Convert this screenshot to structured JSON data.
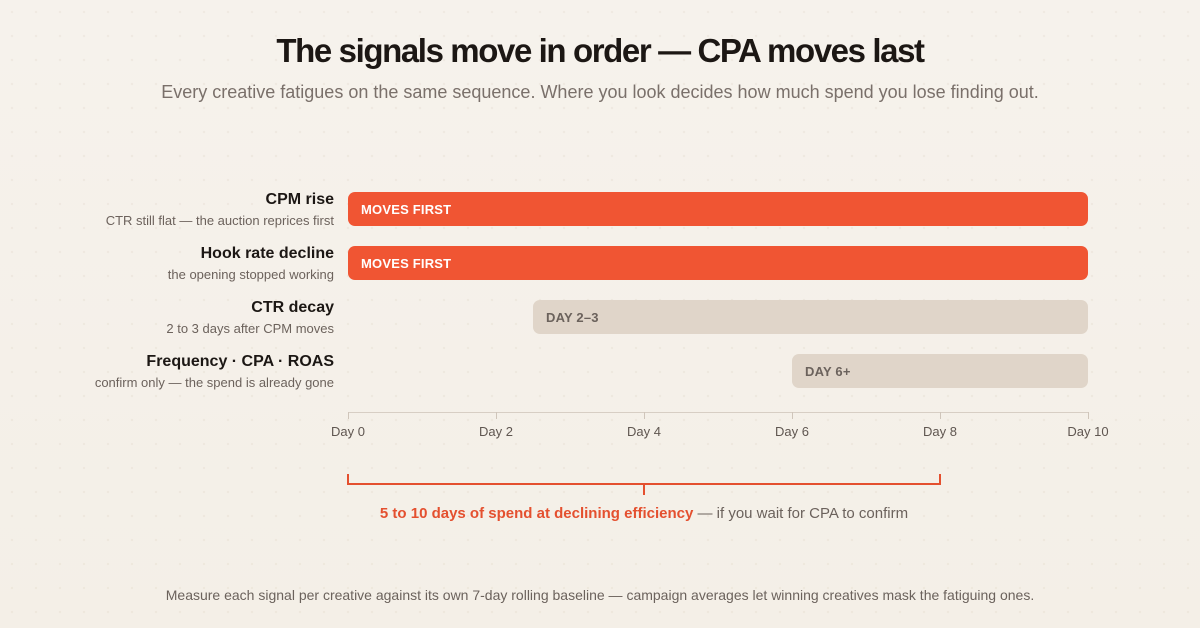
{
  "header": {
    "title": "The signals move in order — CPA moves last",
    "subtitle": "Every creative fatigues on the same sequence. Where you look decides how much spend you lose finding out."
  },
  "chart_data": {
    "type": "bar",
    "orientation": "horizontal-timeline",
    "xlabel": "",
    "ylabel": "",
    "x_unit": "Day",
    "xlim": [
      0,
      10
    ],
    "ticks": [
      "Day 0",
      "Day 2",
      "Day 4",
      "Day 6",
      "Day 8",
      "Day 10"
    ],
    "tick_values": [
      0,
      2,
      4,
      6,
      8,
      10
    ],
    "rows": [
      {
        "name": "CPM rise",
        "note": "CTR still flat — the auction reprices first",
        "start": 0,
        "end": 10,
        "bar_label": "MOVES FIRST",
        "style": "primary"
      },
      {
        "name": "Hook rate decline",
        "note": "the opening stopped working",
        "start": 0,
        "end": 10,
        "bar_label": "MOVES FIRST",
        "style": "primary"
      },
      {
        "name": "CTR decay",
        "note": "2 to 3 days after CPM moves",
        "start": 2.5,
        "end": 10,
        "bar_label": "DAY 2–3",
        "style": "muted"
      },
      {
        "name": "Frequency · CPA · ROAS",
        "note": "confirm only — the spend is already gone",
        "start": 6,
        "end": 10,
        "bar_label": "DAY 6+",
        "style": "muted"
      }
    ],
    "annotation": {
      "range": [
        0,
        8
      ],
      "emphasis": "5 to 10 days of spend at declining efficiency",
      "rest": " — if you wait for CPA to confirm"
    },
    "colors": {
      "primary": "#f05533",
      "muted": "#e0d5c9",
      "annotation": "#e4502f"
    }
  },
  "footer": {
    "text": "Measure each signal per creative against its own 7-day rolling baseline — campaign averages let winning creatives mask the fatiguing ones."
  }
}
